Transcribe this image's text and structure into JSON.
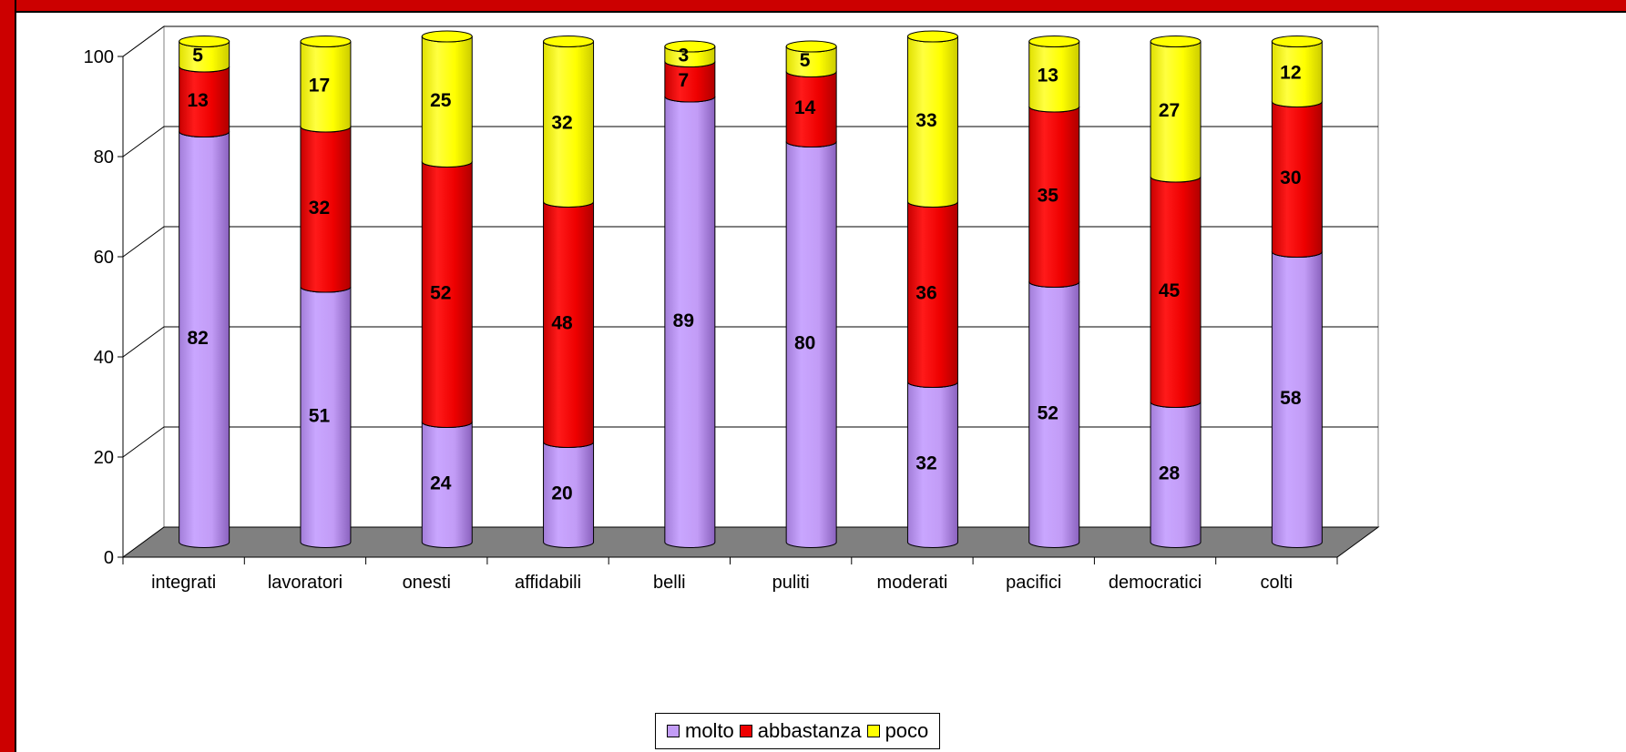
{
  "chart_data": {
    "type": "bar",
    "stacked": true,
    "three_d": true,
    "categories": [
      "integrati",
      "lavoratori",
      "onesti",
      "affidabili",
      "belli",
      "puliti",
      "moderati",
      "pacifici",
      "democratici",
      "colti"
    ],
    "series": [
      {
        "name": "molto",
        "color": "#c29cf6",
        "values": [
          82,
          51,
          24,
          20,
          89,
          80,
          32,
          52,
          28,
          58
        ]
      },
      {
        "name": "abbastanza",
        "color": "#ee0000",
        "values": [
          13,
          32,
          52,
          48,
          7,
          14,
          36,
          35,
          45,
          30
        ]
      },
      {
        "name": "poco",
        "color": "#ffff00",
        "values": [
          5,
          17,
          25,
          32,
          3,
          5,
          33,
          13,
          27,
          12
        ]
      }
    ],
    "yticks": [
      "0",
      "20",
      "40",
      "60",
      "80",
      "100"
    ],
    "ylim": [
      0,
      100
    ],
    "grid": true,
    "legend_position": "bottom",
    "title": "",
    "xlabel": "",
    "ylabel": ""
  }
}
